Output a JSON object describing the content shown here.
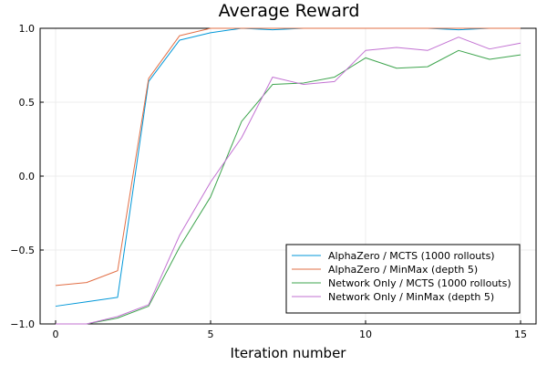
{
  "chart_data": {
    "type": "line",
    "title": "Average Reward",
    "xlabel": "Iteration number",
    "ylabel": "",
    "xlim": [
      -0.5,
      15.5
    ],
    "ylim": [
      -1.0,
      1.0
    ],
    "xticks": [
      0,
      5,
      10,
      15
    ],
    "yticks": [
      -1.0,
      -0.5,
      0.0,
      0.5,
      1.0
    ],
    "ytick_labels": [
      "−1.0",
      "−0.5",
      "0.0",
      "0.5",
      "1.0"
    ],
    "grid": true,
    "legend_position": "bottom-right",
    "x": [
      0,
      1,
      2,
      3,
      4,
      5,
      6,
      7,
      8,
      9,
      10,
      11,
      12,
      13,
      14,
      15
    ],
    "series": [
      {
        "name": "AlphaZero / MCTS (1000 rollouts)",
        "color": "#0097d8",
        "values": [
          -0.88,
          -0.85,
          -0.82,
          0.64,
          0.92,
          0.97,
          1.0,
          0.99,
          1.0,
          1.0,
          1.0,
          1.0,
          1.0,
          0.99,
          1.0,
          1.0
        ]
      },
      {
        "name": "AlphaZero / MinMax (depth 5)",
        "color": "#e26f46",
        "values": [
          -0.74,
          -0.72,
          -0.64,
          0.66,
          0.95,
          1.0,
          1.0,
          1.0,
          1.0,
          1.0,
          1.0,
          1.0,
          1.0,
          1.0,
          1.0,
          1.0
        ]
      },
      {
        "name": "Network Only / MCTS (1000 rollouts)",
        "color": "#3da44d",
        "values": [
          -1.0,
          -1.0,
          -0.96,
          -0.88,
          -0.48,
          -0.14,
          0.37,
          0.62,
          0.63,
          0.67,
          0.8,
          0.73,
          0.74,
          0.85,
          0.79,
          0.82
        ]
      },
      {
        "name": "Network Only / MinMax (depth 5)",
        "color": "#c271d2",
        "values": [
          -1.0,
          -1.0,
          -0.95,
          -0.87,
          -0.4,
          -0.04,
          0.26,
          0.67,
          0.62,
          0.64,
          0.85,
          0.87,
          0.85,
          0.94,
          0.86,
          0.9
        ]
      }
    ]
  }
}
